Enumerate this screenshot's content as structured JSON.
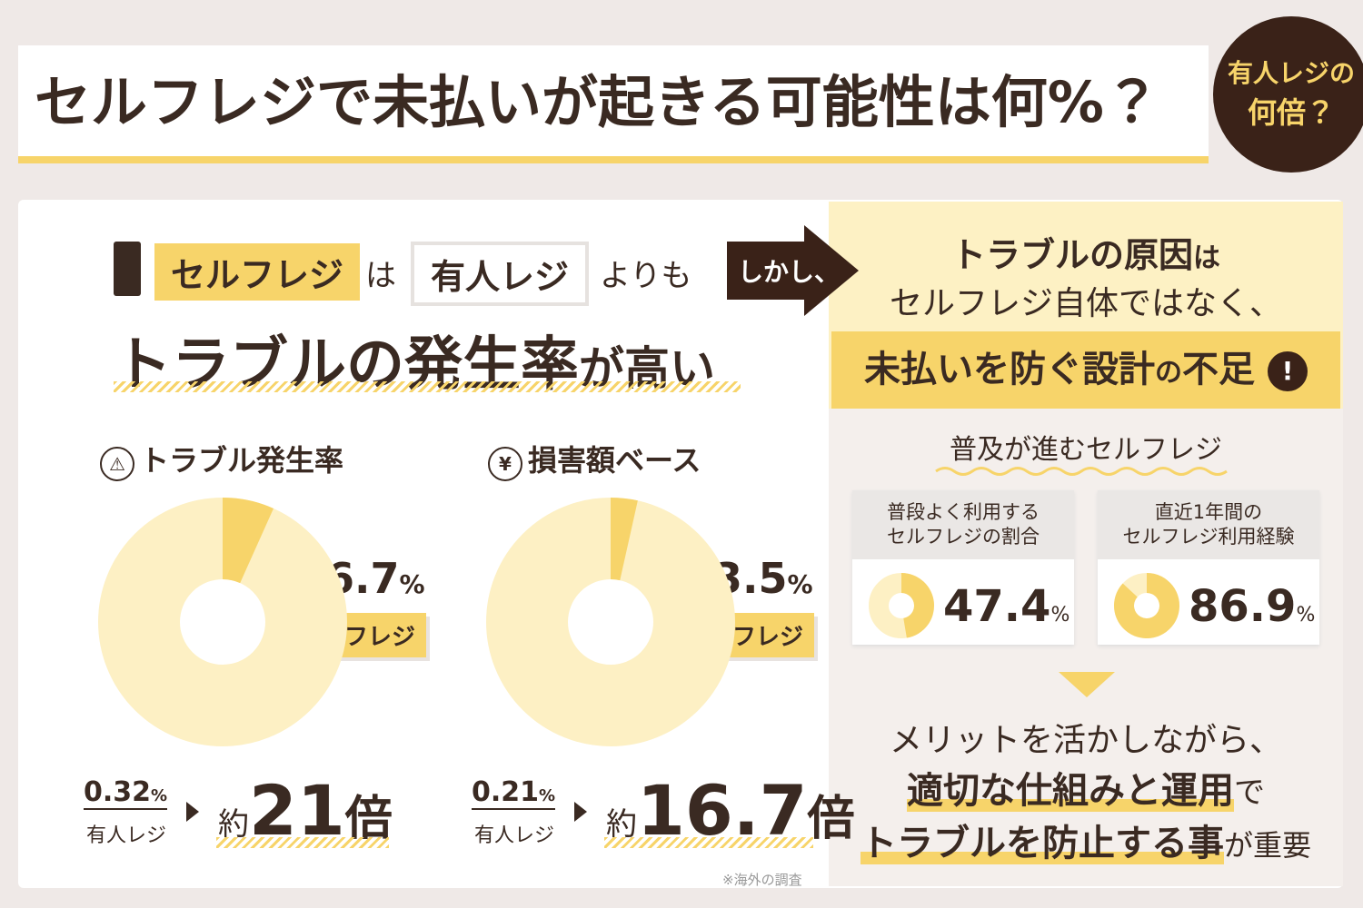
{
  "header": {
    "title": "セルフレジで未払いが起きる可能性は何%？",
    "badge": [
      "有人レジの",
      "何倍？"
    ]
  },
  "left": {
    "intro": {
      "self": "セルフレジ",
      "wa": "は",
      "manned": "有人レジ",
      "than": "よりも"
    },
    "headline": {
      "main": "トラブルの発生率",
      "tail": "が高い"
    },
    "charts": [
      {
        "icon": "⚠",
        "title": "トラブル発生率",
        "value": 6.7,
        "unit": "%",
        "label": "セルフレジ",
        "compare": {
          "value": 0.32,
          "unit": "%",
          "label": "有人レジ"
        },
        "ratio": {
          "prefix": "約",
          "value": 21,
          "suffix": "倍"
        }
      },
      {
        "icon": "¥",
        "title": "損害額ベース",
        "value": 3.5,
        "unit": "%",
        "label": "セルフレジ",
        "compare": {
          "value": 0.21,
          "unit": "%",
          "label": "有人レジ"
        },
        "ratio": {
          "prefix": "約",
          "value": 16.7,
          "suffix": "倍"
        }
      }
    ],
    "note": "※海外の調査"
  },
  "right": {
    "arrow": "しかし、",
    "cause": {
      "main": "トラブルの原因",
      "tail": "は",
      "line2": "セルフレジ自体ではなく、"
    },
    "highlight": {
      "main": "未払いを防ぐ設計",
      "mid": "の",
      "end": "不足",
      "mark": "!"
    },
    "sub": "普及が進むセルフレジ",
    "stats": [
      {
        "label": [
          "普段よく利用する",
          "セルフレジの割合"
        ],
        "value": 47.4,
        "unit": "%"
      },
      {
        "label": [
          "直近1年間の",
          "セルフレジ利用経験"
        ],
        "value": 86.9,
        "unit": "%"
      }
    ],
    "conclusion": {
      "line1": "メリットを活かしながら、",
      "line2": {
        "main": "適切な仕組みと運用",
        "tail": "で"
      },
      "line3": {
        "main": "トラブルを防止する事",
        "tail": "が重要"
      }
    }
  }
}
